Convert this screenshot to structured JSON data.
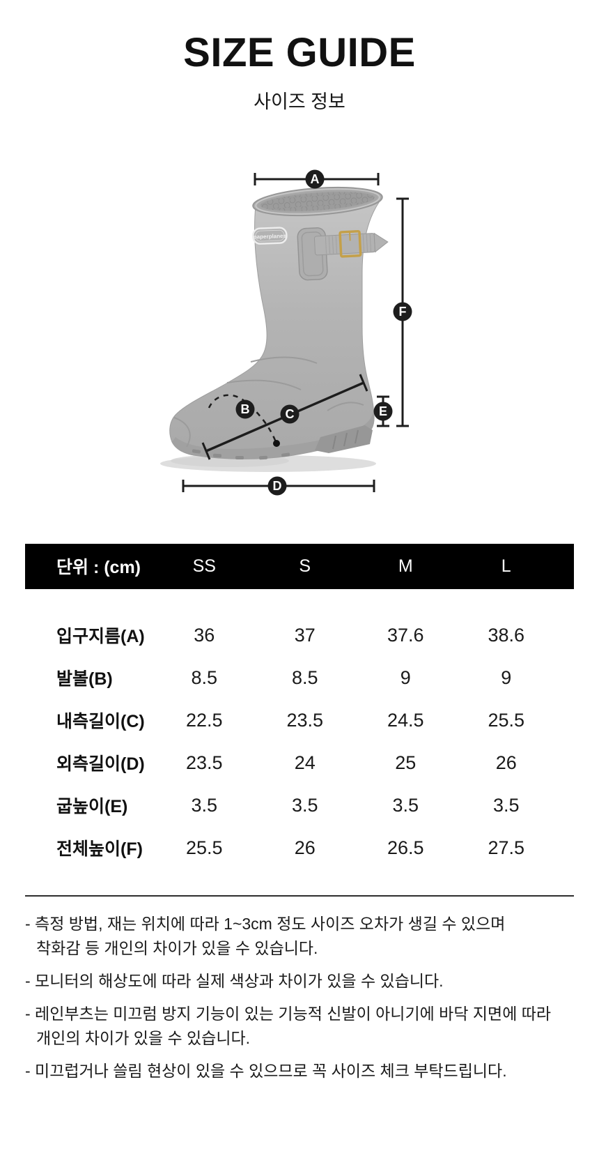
{
  "header": {
    "title": "SIZE GUIDE",
    "subtitle": "사이즈 정보"
  },
  "diagram": {
    "brand_label": "paperplanes",
    "markers": [
      "A",
      "B",
      "C",
      "D",
      "E",
      "F"
    ]
  },
  "table": {
    "unit_label": "단위 : (cm)",
    "columns": [
      "SS",
      "S",
      "M",
      "L"
    ],
    "rows": [
      {
        "label": "입구지름(A)",
        "values": [
          "36",
          "37",
          "37.6",
          "38.6"
        ]
      },
      {
        "label": "발볼(B)",
        "values": [
          "8.5",
          "8.5",
          "9",
          "9"
        ]
      },
      {
        "label": "내측길이(C)",
        "values": [
          "22.5",
          "23.5",
          "24.5",
          "25.5"
        ]
      },
      {
        "label": "외측길이(D)",
        "values": [
          "23.5",
          "24",
          "25",
          "26"
        ]
      },
      {
        "label": "굽높이(E)",
        "values": [
          "3.5",
          "3.5",
          "3.5",
          "3.5"
        ]
      },
      {
        "label": "전체높이(F)",
        "values": [
          "25.5",
          "26",
          "26.5",
          "27.5"
        ]
      }
    ]
  },
  "notes": [
    {
      "lines": [
        "- 측정 방법, 재는 위치에 따라 1~3cm 정도 사이즈 오차가 생길 수 있으며",
        "착화감 등 개인의 차이가 있을 수 있습니다."
      ]
    },
    {
      "lines": [
        "- 모니터의 해상도에 따라 실제 색상과 차이가 있을 수 있습니다."
      ]
    },
    {
      "lines": [
        "- 레인부츠는 미끄럼 방지 기능이 있는 기능적 신발이 아니기에 바닥 지면에 따라",
        "개인의 차이가 있을 수 있습니다."
      ]
    },
    {
      "lines": [
        "- 미끄럽거나 쓸림 현상이 있을 수 있으므로 꼭 사이즈 체크 부탁드립니다."
      ]
    }
  ],
  "colors": {
    "header_bar": "#000000",
    "header_text": "#ffffff",
    "body_text": "#111111",
    "boot_gray": "#b4b4b4",
    "buckle_gold": "#c4a04a",
    "marker_bg": "#1d1d1d"
  }
}
